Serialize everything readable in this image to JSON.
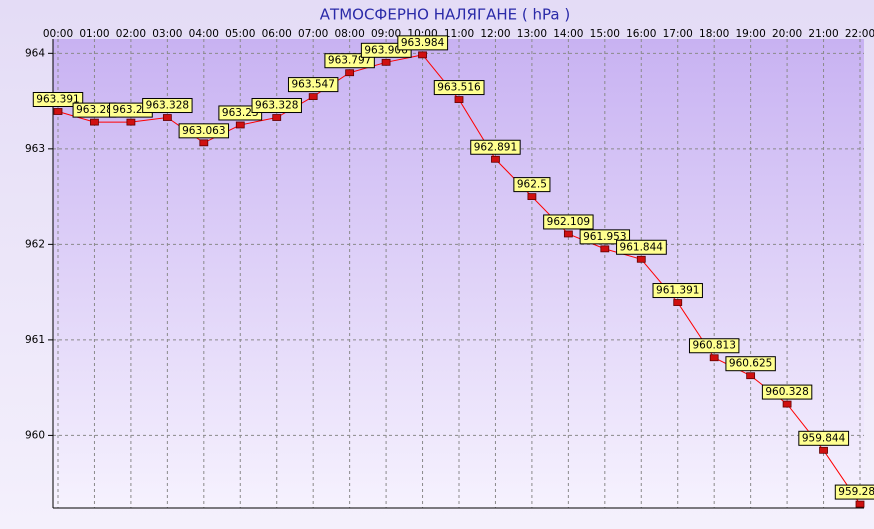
{
  "chart_data": {
    "type": "line",
    "title": "АТМОСФЕРНО НАЛЯГАНЕ  ( hPa )",
    "categories": [
      "00:00",
      "01:00",
      "02:00",
      "03:00",
      "04:00",
      "05:00",
      "06:00",
      "07:00",
      "08:00",
      "09:00",
      "10:00",
      "11:00",
      "12:00",
      "13:00",
      "14:00",
      "15:00",
      "16:00",
      "17:00",
      "18:00",
      "19:00",
      "20:00",
      "21:00",
      "22:00"
    ],
    "values": [
      963.391,
      963.28,
      963.28,
      963.328,
      963.063,
      963.25,
      963.328,
      963.547,
      963.797,
      963.906,
      963.984,
      963.516,
      962.891,
      962.5,
      962.109,
      961.953,
      961.844,
      961.391,
      960.813,
      960.625,
      960.328,
      959.844,
      959.281
    ],
    "color": "#ff0000",
    "ylim": [
      959.24,
      964.15
    ],
    "yticks": [
      960,
      961,
      962,
      963,
      964
    ],
    "grid": true
  }
}
